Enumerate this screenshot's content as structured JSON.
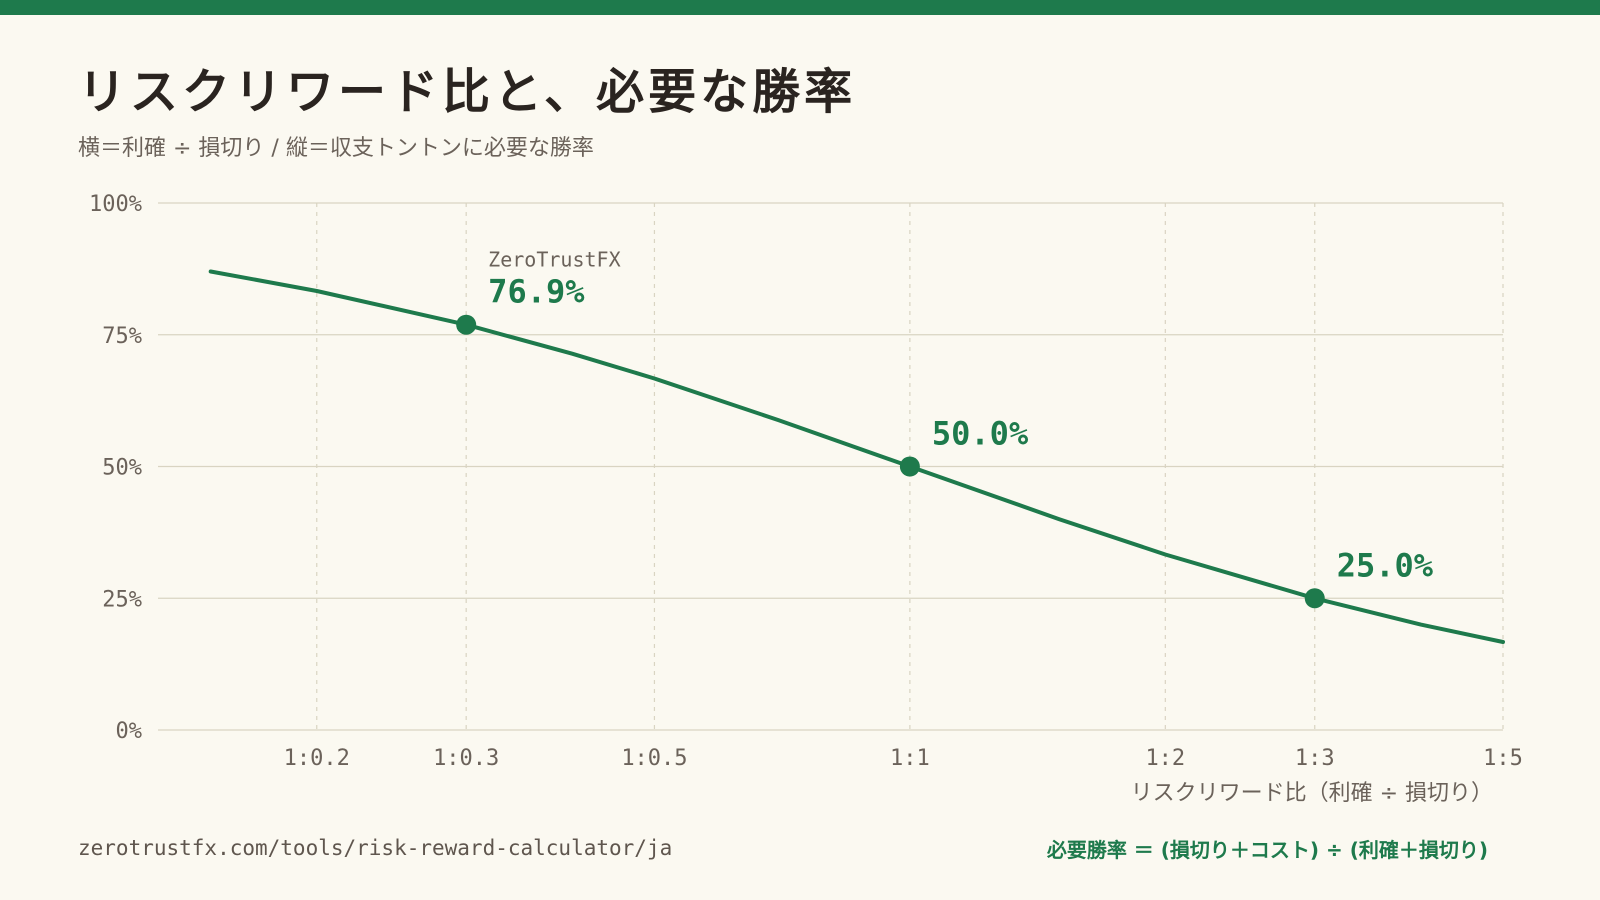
{
  "title": "リスクリワード比と、必要な勝率",
  "subtitle": "横＝利確 ÷ 損切り / 縦＝収支トントンに必要な勝率",
  "footer": {
    "url": "zerotrustfx.com/tools/risk-reward-calculator/ja",
    "formula": "必要勝率 ＝ (損切り＋コスト) ÷ (利確＋損切り)"
  },
  "colors": {
    "accent": "#1e7a4c",
    "background": "#fbf9f1",
    "grid": "#d9d4c2",
    "axis_text": "#6b625a"
  },
  "chart_data": {
    "type": "line",
    "title": "リスクリワード比と、必要な勝率",
    "xlabel": "リスクリワード比（利確 ÷ 損切り）",
    "ylabel": "",
    "x_scale": "log",
    "xlim": [
      0.13,
      5
    ],
    "ylim": [
      0,
      100
    ],
    "x_ticks": [
      {
        "value": 0.2,
        "label": "1:0.2"
      },
      {
        "value": 0.3,
        "label": "1:0.3"
      },
      {
        "value": 0.5,
        "label": "1:0.5"
      },
      {
        "value": 1,
        "label": "1:1"
      },
      {
        "value": 2,
        "label": "1:2"
      },
      {
        "value": 3,
        "label": "1:3"
      },
      {
        "value": 5,
        "label": "1:5"
      }
    ],
    "y_ticks": [
      {
        "value": 0,
        "label": "0%"
      },
      {
        "value": 25,
        "label": "25%"
      },
      {
        "value": 50,
        "label": "50%"
      },
      {
        "value": 75,
        "label": "75%"
      },
      {
        "value": 100,
        "label": "100%"
      }
    ],
    "grid": true,
    "series": [
      {
        "name": "",
        "x": [
          0.15,
          0.2,
          0.3,
          0.4,
          0.5,
          0.7,
          1,
          1.5,
          2,
          3,
          4,
          5
        ],
        "y": [
          87.0,
          83.3,
          76.9,
          71.4,
          66.7,
          58.8,
          50.0,
          40.0,
          33.3,
          25.0,
          20.0,
          16.7
        ]
      }
    ],
    "highlights": [
      {
        "x": 0.3,
        "y": 76.9,
        "label": "76.9%",
        "caption": "ZeroTrustFX"
      },
      {
        "x": 1,
        "y": 50.0,
        "label": "50.0%",
        "caption": ""
      },
      {
        "x": 3,
        "y": 25.0,
        "label": "25.0%",
        "caption": ""
      }
    ]
  }
}
